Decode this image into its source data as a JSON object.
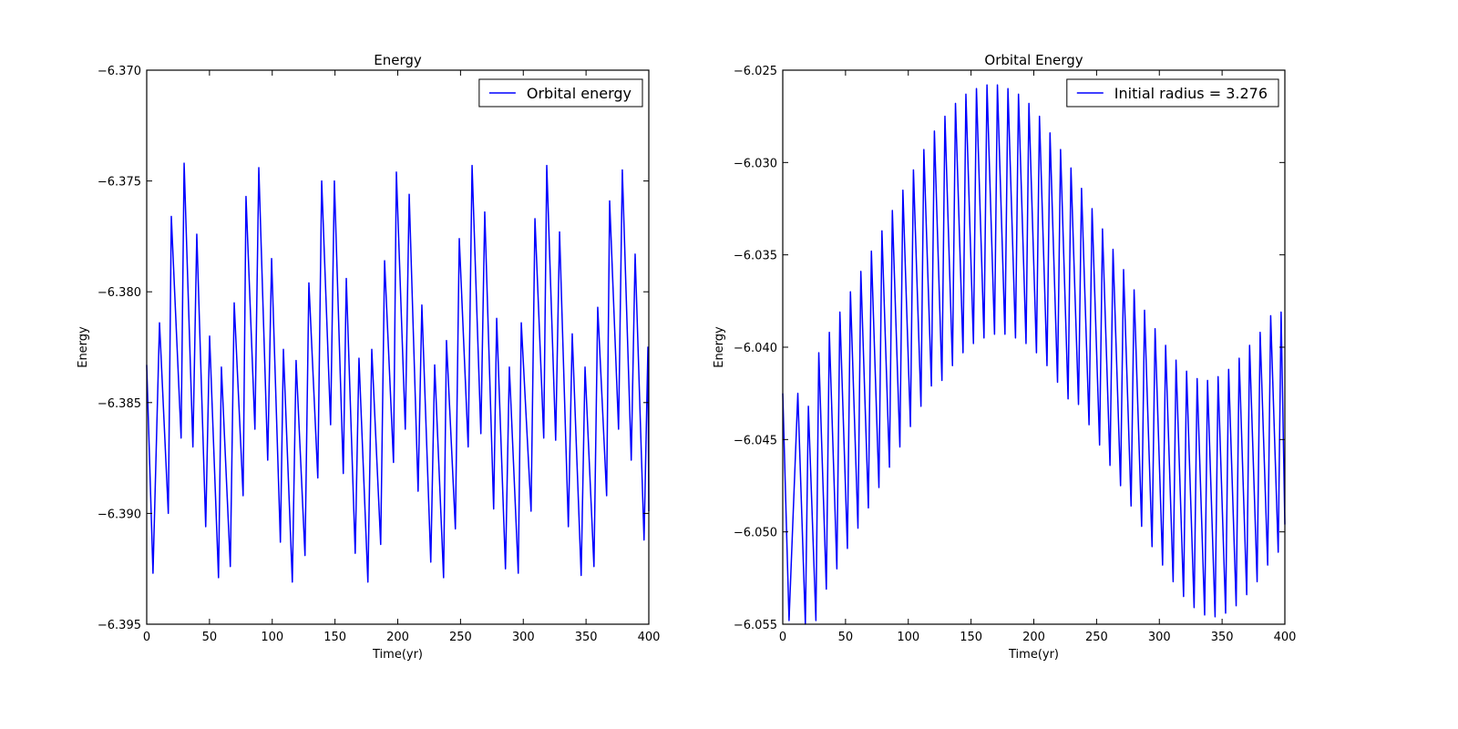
{
  "chart_data": [
    {
      "type": "line",
      "title": "Energy",
      "xlabel": "Time(yr)",
      "ylabel": "Energy",
      "xlim": [
        0,
        400
      ],
      "xticks": [
        0,
        50,
        100,
        150,
        200,
        250,
        300,
        350,
        400
      ],
      "ylim": [
        -6.395,
        -6.37
      ],
      "yticks": [
        {
          "value": -6.395,
          "label": "−6.395"
        },
        {
          "value": -6.39,
          "label": "−6.390"
        },
        {
          "value": -6.385,
          "label": "−6.385"
        },
        {
          "value": -6.38,
          "label": "−6.380"
        },
        {
          "value": -6.375,
          "label": "−6.375"
        },
        {
          "value": -6.37,
          "label": "−6.370"
        }
      ],
      "legend": "upper right",
      "x": [
        0,
        5,
        10.2,
        17.2,
        19.6,
        27.4,
        29.8,
        36.8,
        39.9,
        47,
        50.1,
        57.2,
        59.5,
        66.6,
        69.7,
        76.8,
        79.1,
        86.2,
        89.3,
        96.4,
        99.5,
        106.5,
        108.9,
        116,
        119,
        126.1,
        129.2,
        136.3,
        139.4,
        146.5,
        149.5,
        156.6,
        159,
        166.1,
        169.1,
        176.2,
        179.3,
        186.4,
        189.5,
        196.6,
        198.9,
        206,
        209.1,
        216.2,
        219.2,
        226.3,
        229.4,
        236.5,
        238.8,
        245.9,
        249,
        256.1,
        259.2,
        266.2,
        269.3,
        276.4,
        278.8,
        285.8,
        288.9,
        296,
        298.4,
        306.2,
        309.3,
        316.3,
        318.7,
        325.8,
        328.9,
        335.9,
        339,
        346.1,
        349.2,
        356.3,
        359.3,
        366.4,
        368.8,
        375.9,
        378.9,
        386,
        389.1,
        396.2,
        399.3,
        400
      ],
      "series": [
        {
          "name": "Orbital energy",
          "color": "#0000ff",
          "values": [
            -6.3833,
            -6.3927,
            -6.3814,
            -6.39,
            -6.3766,
            -6.3866,
            -6.3742,
            -6.387,
            -6.3774,
            -6.3906,
            -6.382,
            -6.3929,
            -6.3834,
            -6.3924,
            -6.3805,
            -6.3892,
            -6.3757,
            -6.3862,
            -6.3744,
            -6.3876,
            -6.3785,
            -6.3913,
            -6.3826,
            -6.3931,
            -6.3831,
            -6.3919,
            -6.3796,
            -6.3884,
            -6.375,
            -6.386,
            -6.375,
            -6.3882,
            -6.3794,
            -6.3918,
            -6.383,
            -6.3931,
            -6.3826,
            -6.3914,
            -6.3786,
            -6.3877,
            -6.3746,
            -6.3862,
            -6.3756,
            -6.389,
            -6.3806,
            -6.3922,
            -6.3833,
            -6.3929,
            -6.3822,
            -6.3907,
            -6.3776,
            -6.387,
            -6.3743,
            -6.3864,
            -6.3764,
            -6.3898,
            -6.3812,
            -6.3925,
            -6.3834,
            -6.3927,
            -6.3814,
            -6.3899,
            -6.3767,
            -6.3866,
            -6.3743,
            -6.3867,
            -6.3773,
            -6.3906,
            -6.3819,
            -6.3928,
            -6.3834,
            -6.3924,
            -6.3807,
            -6.3892,
            -6.3759,
            -6.3862,
            -6.3745,
            -6.3876,
            -6.3783,
            -6.3912,
            -6.3825,
            -6.3899
          ]
        }
      ]
    },
    {
      "type": "line",
      "title": "Orbital Energy",
      "xlabel": "Time(yr)",
      "ylabel": "Energy",
      "xlim": [
        0,
        400
      ],
      "xticks": [
        0,
        50,
        100,
        150,
        200,
        250,
        300,
        350,
        400
      ],
      "ylim": [
        -6.055,
        -6.025
      ],
      "yticks": [
        {
          "value": -6.055,
          "label": "−6.055"
        },
        {
          "value": -6.05,
          "label": "−6.050"
        },
        {
          "value": -6.045,
          "label": "−6.045"
        },
        {
          "value": -6.04,
          "label": "−6.040"
        },
        {
          "value": -6.035,
          "label": "−6.035"
        },
        {
          "value": -6.03,
          "label": "−6.030"
        },
        {
          "value": -6.025,
          "label": "−6.025"
        }
      ],
      "legend": "upper right",
      "x": [
        0,
        5,
        12,
        18,
        20.4,
        26.4,
        28.7,
        34.7,
        37.1,
        43.1,
        45.5,
        51.5,
        53.9,
        59.9,
        62.2,
        68.2,
        70.6,
        76.6,
        79,
        85,
        87.3,
        93.3,
        95.7,
        101.7,
        104.1,
        110.1,
        112.4,
        118.4,
        120.8,
        126.8,
        129.2,
        135.2,
        137.6,
        143.6,
        145.9,
        151.9,
        154.3,
        160.3,
        162.7,
        168.7,
        171,
        177,
        179.4,
        185.4,
        187.8,
        193.8,
        196.1,
        202.1,
        204.5,
        210.5,
        212.9,
        218.9,
        221.3,
        227.3,
        229.6,
        235.6,
        238,
        244,
        246.4,
        252.4,
        254.7,
        260.7,
        263.1,
        269.1,
        271.5,
        277.5,
        279.9,
        285.9,
        288.2,
        294.2,
        296.6,
        302.6,
        305,
        311,
        313.3,
        319.3,
        321.7,
        327.7,
        330.1,
        336.1,
        338.4,
        344.4,
        346.8,
        352.8,
        355.2,
        361.2,
        363.6,
        369.6,
        371.9,
        377.9,
        380.3,
        386.3,
        388.7,
        394.7,
        397,
        400
      ],
      "series": [
        {
          "name": "Initial radius = 3.276",
          "color": "#0000ff",
          "values": [
            -6.0425,
            -6.0548,
            -6.0425,
            -6.055,
            -6.0432,
            -6.0548,
            -6.0403,
            -6.0531,
            -6.0392,
            -6.052,
            -6.0381,
            -6.0509,
            -6.037,
            -6.0498,
            -6.0359,
            -6.0487,
            -6.0348,
            -6.0476,
            -6.0337,
            -6.0465,
            -6.0326,
            -6.0454,
            -6.0315,
            -6.0443,
            -6.0304,
            -6.0432,
            -6.0293,
            -6.0421,
            -6.0283,
            -6.0418,
            -6.0275,
            -6.041,
            -6.0268,
            -6.0403,
            -6.0263,
            -6.0398,
            -6.026,
            -6.0395,
            -6.0258,
            -6.0393,
            -6.0258,
            -6.0393,
            -6.026,
            -6.0395,
            -6.0263,
            -6.0398,
            -6.0268,
            -6.0403,
            -6.0275,
            -6.041,
            -6.0284,
            -6.0419,
            -6.0293,
            -6.0428,
            -6.0303,
            -6.0431,
            -6.0314,
            -6.0442,
            -6.0325,
            -6.0453,
            -6.0336,
            -6.0464,
            -6.0347,
            -6.0475,
            -6.0358,
            -6.0486,
            -6.0369,
            -6.0497,
            -6.038,
            -6.0508,
            -6.039,
            -6.0518,
            -6.0399,
            -6.0527,
            -6.0407,
            -6.0535,
            -6.0413,
            -6.0541,
            -6.0417,
            -6.0545,
            -6.0418,
            -6.0546,
            -6.0416,
            -6.0544,
            -6.0412,
            -6.054,
            -6.0406,
            -6.0534,
            -6.0399,
            -6.0527,
            -6.0392,
            -6.0518,
            -6.0383,
            -6.0511,
            -6.0381,
            -6.0496
          ]
        }
      ]
    }
  ]
}
